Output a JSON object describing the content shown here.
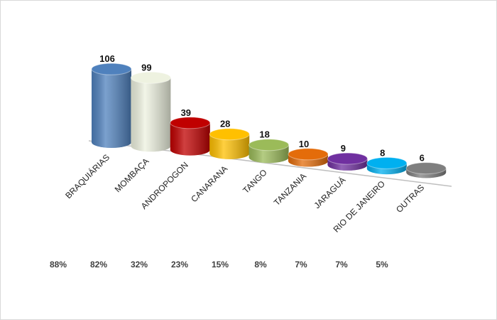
{
  "chart_data": {
    "type": "bar",
    "categories": [
      "BRAQUIÁRIAS",
      "MOMBAÇA",
      "ANDROPOGON",
      "CANARANA",
      "TANGO",
      "TANZANIA",
      "JARAGUÁ",
      "RIO DE JANEIRO",
      "OUTRAS"
    ],
    "values": [
      106,
      99,
      39,
      28,
      18,
      10,
      9,
      8,
      6
    ],
    "colors": [
      "#4f81bd",
      "#eef2e0",
      "#c00000",
      "#ffc000",
      "#9bbb59",
      "#e46c0a",
      "#7030a0",
      "#00b0f0",
      "#7f7f7f"
    ],
    "percentages": [
      "88%",
      "82%",
      "32%",
      "23%",
      "15%",
      "8%",
      "7%",
      "7%",
      "5%"
    ]
  }
}
